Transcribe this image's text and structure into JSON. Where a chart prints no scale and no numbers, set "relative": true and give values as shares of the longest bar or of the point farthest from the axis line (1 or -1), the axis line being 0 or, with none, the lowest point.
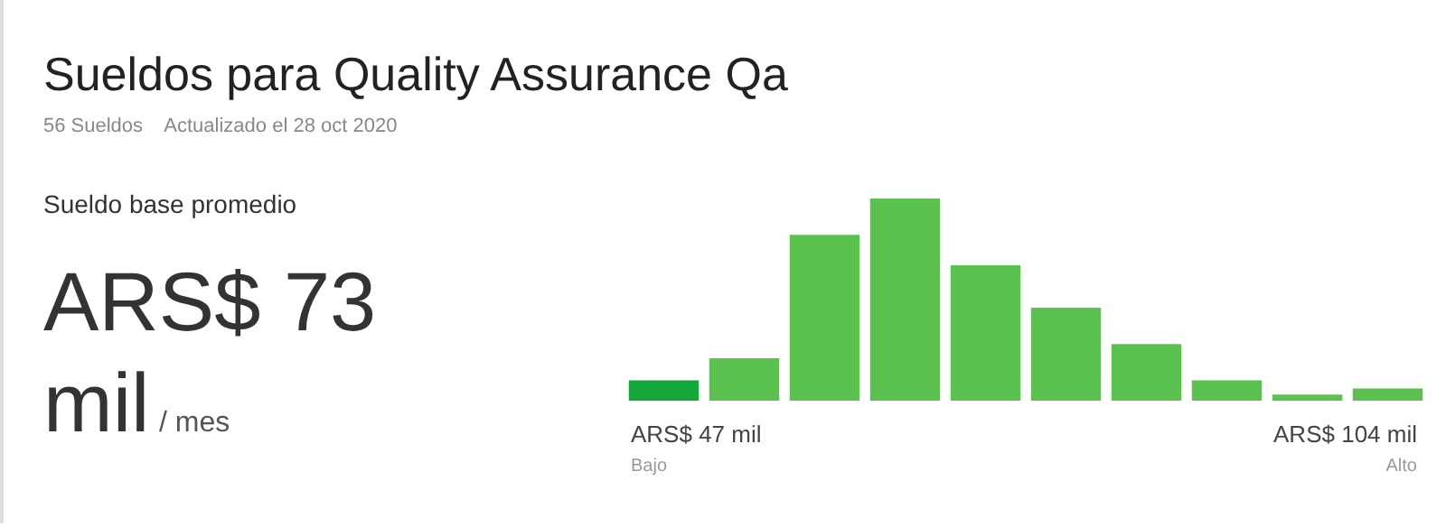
{
  "chart_data": {
    "type": "bar",
    "title": "Sueldos para Quality Assurance Qa",
    "subtitle": "56 Sueldos    Actualizado el 28 oct 2020",
    "annotations": [
      "Sueldo base promedio",
      "ARS$ 73",
      "mil",
      "/ mes",
      "ARS$ 47 mil",
      "Bajo",
      "ARS$ 104 mil",
      "Alto"
    ],
    "categories": [
      null,
      null,
      null,
      null,
      null,
      null,
      null,
      null,
      null,
      null
    ],
    "values": [
      0.1,
      0.21,
      0.82,
      1,
      0.67,
      0.46,
      0.28,
      0.1,
      0.03,
      0.06
    ],
    "colors": [
      "#14a83b",
      "#5bc14f",
      "#5bc14f",
      "#5bc14f",
      "#5bc14f",
      "#5bc14f",
      "#5bc14f",
      "#5bc14f",
      "#5bc14f",
      "#5bc14f"
    ],
    "relative": true
  }
}
